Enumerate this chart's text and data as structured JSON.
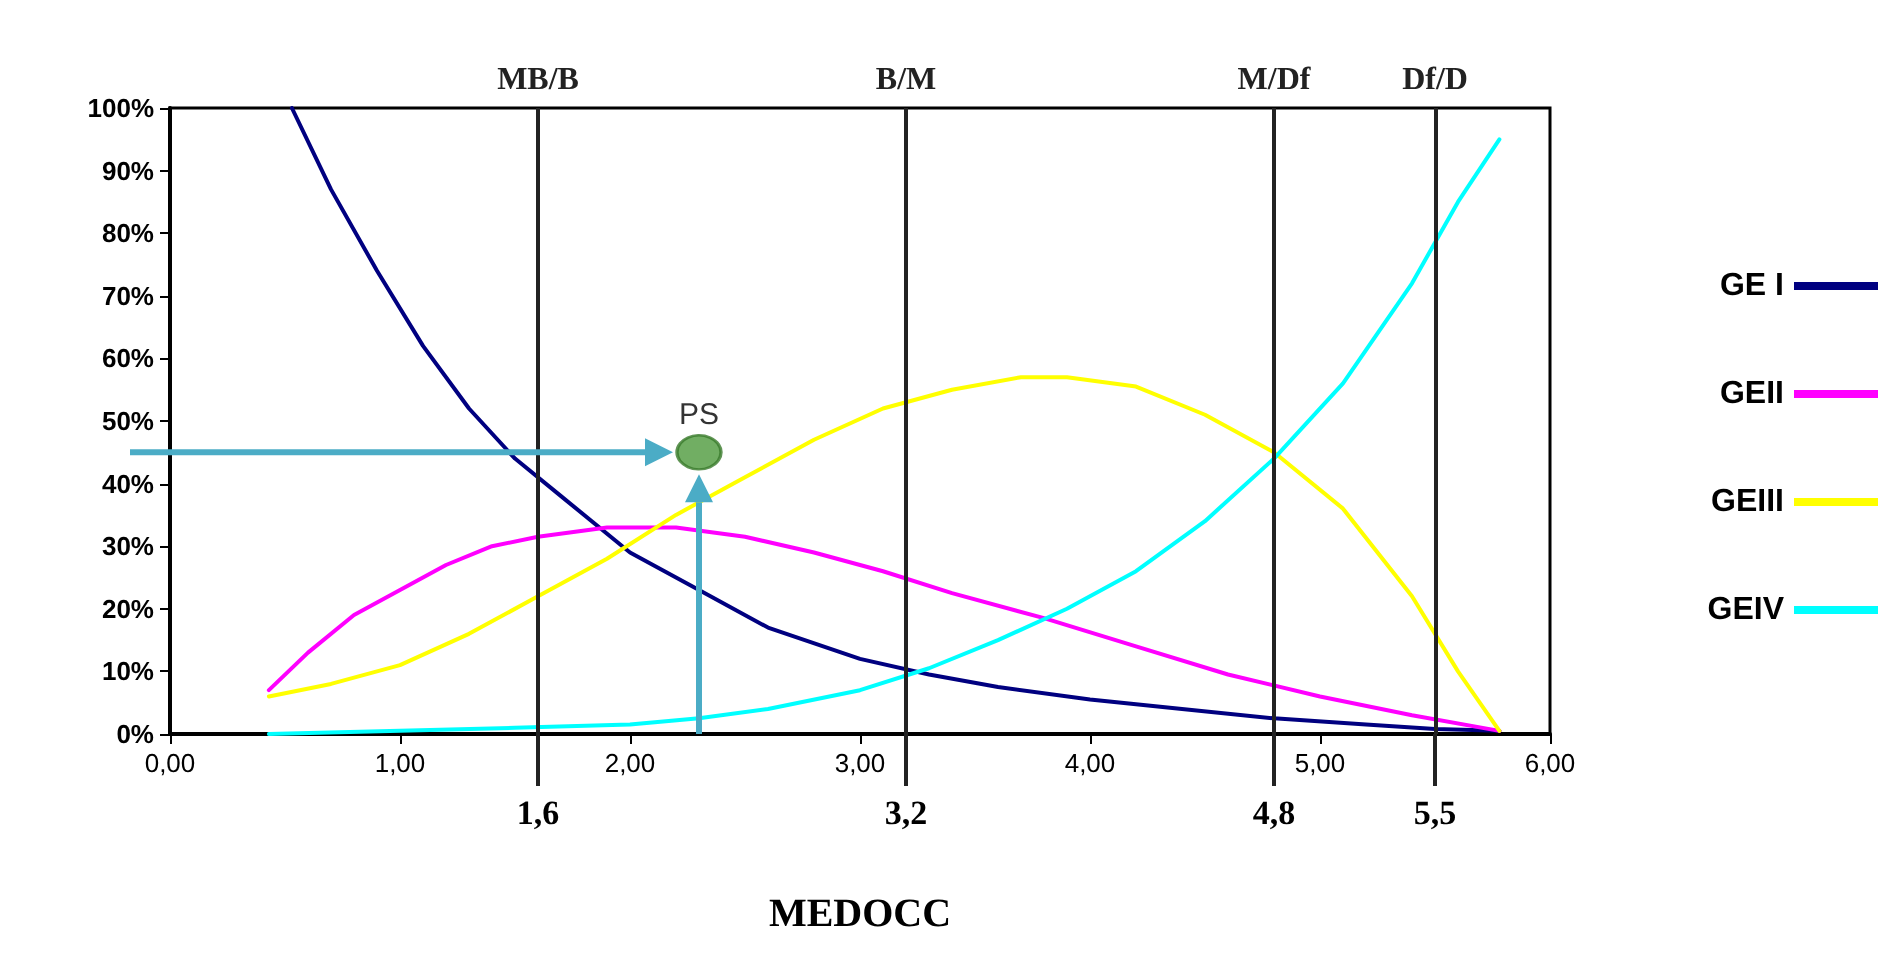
{
  "chart_data": {
    "type": "line",
    "xlabel": "MEDOCC",
    "xlim": [
      0,
      6
    ],
    "xticks": [
      {
        "value": 0,
        "label": "0,00"
      },
      {
        "value": 1,
        "label": "1,00"
      },
      {
        "value": 2,
        "label": "2,00"
      },
      {
        "value": 3,
        "label": "3,00"
      },
      {
        "value": 4,
        "label": "4,00"
      },
      {
        "value": 5,
        "label": "5,00"
      },
      {
        "value": 6,
        "label": "6,00"
      }
    ],
    "ylim": [
      0,
      100
    ],
    "yticks": [
      {
        "value": 0,
        "label": "0%"
      },
      {
        "value": 10,
        "label": "10%"
      },
      {
        "value": 20,
        "label": "20%"
      },
      {
        "value": 30,
        "label": "30%"
      },
      {
        "value": 40,
        "label": "40%"
      },
      {
        "value": 50,
        "label": "50%"
      },
      {
        "value": 60,
        "label": "60%"
      },
      {
        "value": 70,
        "label": "70%"
      },
      {
        "value": 80,
        "label": "80%"
      },
      {
        "value": 90,
        "label": "90%"
      },
      {
        "value": 100,
        "label": "100%"
      }
    ],
    "grid": false,
    "legend": "right",
    "marker": "none",
    "line_style": "solid",
    "series": [
      {
        "name": "GE I",
        "color": "#000080",
        "x": [
          0.53,
          0.7,
          0.9,
          1.1,
          1.3,
          1.5,
          1.7,
          2.0,
          2.3,
          2.6,
          3.0,
          3.3,
          3.6,
          4.0,
          4.4,
          4.8,
          5.2,
          5.5,
          5.78
        ],
        "values": [
          100,
          87,
          74,
          62,
          52,
          44,
          38,
          29,
          23,
          17,
          12,
          9.5,
          7.5,
          5.5,
          4,
          2.5,
          1.5,
          0.8,
          0.5
        ]
      },
      {
        "name": "GEII",
        "color": "#ff00ff",
        "x": [
          0.43,
          0.6,
          0.8,
          1.0,
          1.2,
          1.4,
          1.6,
          1.9,
          2.2,
          2.5,
          2.8,
          3.1,
          3.4,
          3.8,
          4.2,
          4.6,
          5.0,
          5.4,
          5.78
        ],
        "values": [
          7,
          13,
          19,
          23,
          27,
          30,
          31.5,
          33,
          33,
          31.5,
          29,
          26,
          22.5,
          18.5,
          14,
          9.5,
          6,
          3,
          0.5
        ]
      },
      {
        "name": "GEIII",
        "color": "#ffff00",
        "x": [
          0.43,
          0.7,
          1.0,
          1.3,
          1.6,
          1.9,
          2.2,
          2.5,
          2.8,
          3.1,
          3.4,
          3.7,
          3.9,
          4.2,
          4.5,
          4.8,
          5.1,
          5.4,
          5.6,
          5.78
        ],
        "values": [
          6,
          8,
          11,
          16,
          22,
          28,
          35,
          41,
          47,
          52,
          55,
          57,
          57,
          55.5,
          51,
          45,
          36,
          22,
          10,
          0.5
        ]
      },
      {
        "name": "GEIV",
        "color": "#00ffff",
        "x": [
          0.43,
          1.0,
          1.5,
          2.0,
          2.3,
          2.6,
          3.0,
          3.3,
          3.6,
          3.9,
          4.2,
          4.5,
          4.8,
          5.1,
          5.4,
          5.6,
          5.78
        ],
        "values": [
          0,
          0.5,
          1,
          1.5,
          2.5,
          4,
          7,
          10.5,
          15,
          20,
          26,
          34,
          44,
          56,
          72,
          85,
          95
        ]
      },
      {
        "type": "scatter",
        "name": "PS",
        "color": "#4e9a3c",
        "marker": "circle",
        "x": [
          2.3
        ],
        "values": [
          45
        ]
      }
    ],
    "ref_lines": [
      {
        "axis": "x",
        "value": 1.6,
        "label": "MB/B"
      },
      {
        "axis": "x",
        "value": 3.2,
        "label": "B/M"
      },
      {
        "axis": "x",
        "value": 4.8,
        "label": "M/Df"
      },
      {
        "axis": "x",
        "value": 5.5,
        "label": "Df/D"
      }
    ],
    "annotations": [
      {
        "text": "1,6",
        "x": 1.6,
        "y": 0
      },
      {
        "text": "3,2",
        "x": 3.2,
        "y": 0
      },
      {
        "text": "4,8",
        "x": 4.8,
        "y": 0
      },
      {
        "text": "5,5",
        "x": 5.5,
        "y": 0
      }
    ]
  }
}
